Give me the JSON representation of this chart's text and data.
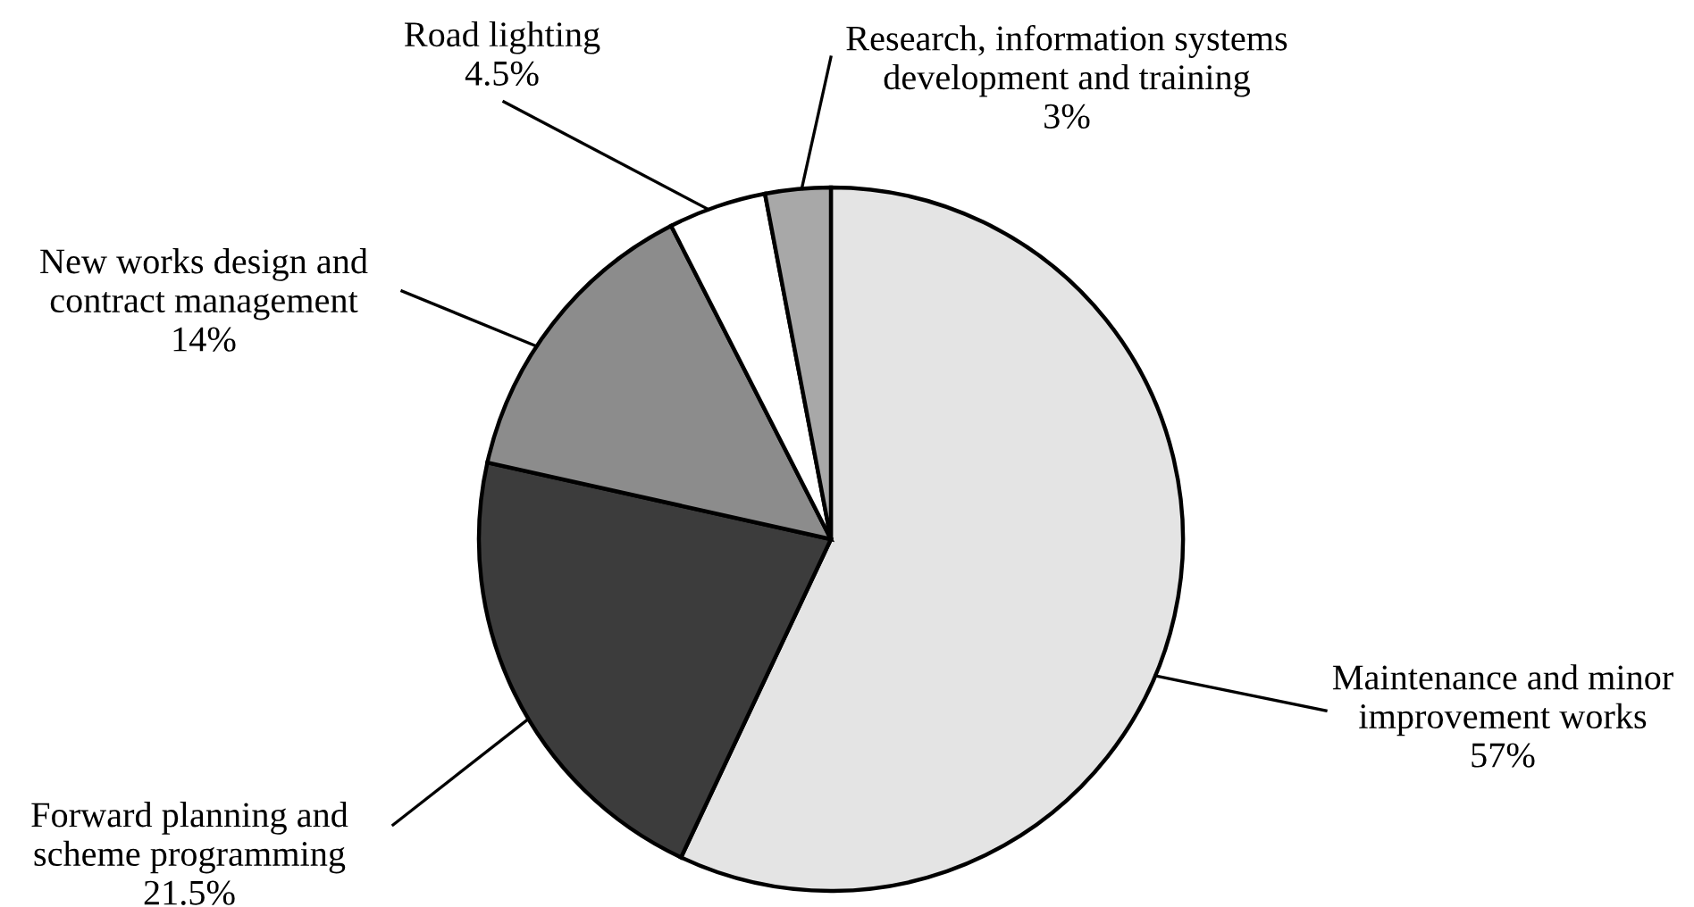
{
  "chart_data": {
    "type": "pie",
    "categories": [
      "Maintenance and minor\nimprovement works",
      "Forward planning and\nscheme programming",
      "New works design and\ncontract management",
      "Road lighting",
      "Research, information systems\ndevelopment and training"
    ],
    "values": [
      57,
      21.5,
      14,
      4.5,
      3
    ],
    "value_labels": [
      "57%",
      "21.5%",
      "14%",
      "4.5%",
      "3%"
    ],
    "colors": [
      "#e4e4e4",
      "#3c3c3c",
      "#8c8c8c",
      "#ffffff",
      "#a8a8a8"
    ]
  }
}
